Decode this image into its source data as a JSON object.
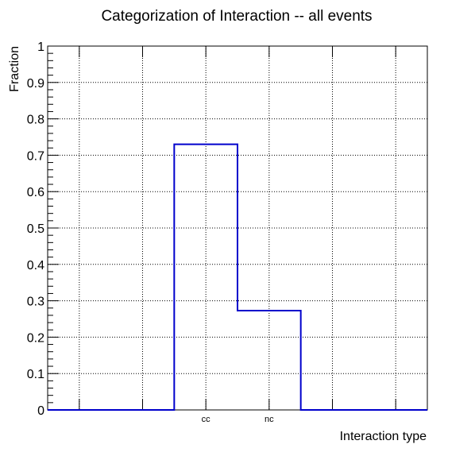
{
  "chart_data": {
    "type": "bar",
    "title": "Categorization of Interaction -- all events",
    "xlabel": "Interaction type",
    "ylabel": "Fraction",
    "categories": [
      "",
      "",
      "cc",
      "nc",
      "",
      ""
    ],
    "values": [
      0,
      0,
      0.73,
      0.273,
      0,
      0
    ],
    "ylim": [
      0,
      1
    ],
    "yticks": [
      "0",
      "0.1",
      "0.2",
      "0.3",
      "0.4",
      "0.5",
      "0.6",
      "0.7",
      "0.8",
      "0.9",
      "1"
    ],
    "grid": true,
    "style": "step",
    "line_color": "#0000cc"
  }
}
